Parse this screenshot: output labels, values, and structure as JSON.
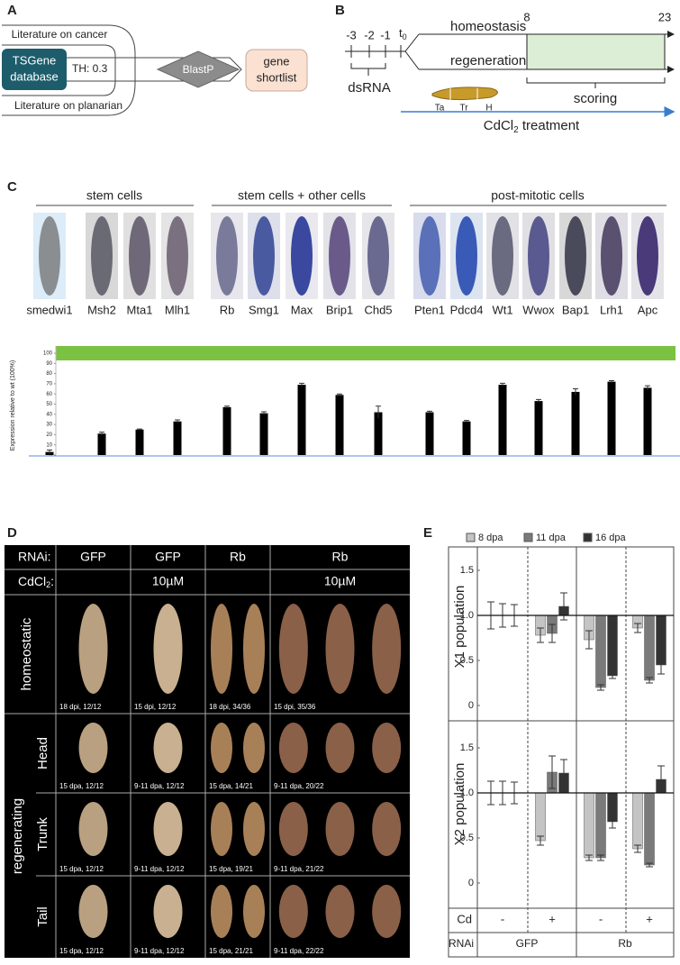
{
  "panel_a": {
    "label": "A",
    "lit_cancer": "Literature on cancer",
    "tsgene": [
      "TSGene",
      "database"
    ],
    "threshold": "TH: 0.3",
    "blastp": "BlastP",
    "shortlist": [
      "gene",
      "shortlist"
    ],
    "lit_planarian": "Literature on planarian"
  },
  "panel_b": {
    "label": "B",
    "days": [
      "-3",
      "-2",
      "-1"
    ],
    "t0": [
      "t",
      "0"
    ],
    "homeostasis": "homeostasis",
    "regeneration": "regeneration",
    "day_start": "8",
    "day_end": "23",
    "dsrna": "dsRNA",
    "fragments": [
      "Ta",
      "Tr",
      "H"
    ],
    "scoring": "scoring",
    "treatment": [
      "CdCl",
      "2",
      " treatment"
    ]
  },
  "panel_c": {
    "label": "C",
    "groups": [
      "stem cells",
      "stem cells + other cells",
      "post-mitotic cells"
    ]
  },
  "panel_d": {
    "label": "D",
    "rnai_label": "RNAi:",
    "rnai": [
      "GFP",
      "GFP",
      "Rb",
      "Rb"
    ],
    "cd_label": [
      "CdCl",
      "2",
      ":"
    ],
    "cd": [
      "10µM",
      "10µM"
    ],
    "homeostatic": "homeostatic",
    "regenerating": "regenerating",
    "fragments": [
      "Head",
      "Trunk",
      "Tail"
    ],
    "captions": [
      [
        "18 dpi, 12/12",
        "15 dpi, 12/12",
        "18 dpi, 34/36",
        "15 dpi, 35/36"
      ],
      [
        "15 dpa, 12/12",
        "9-11 dpa, 12/12",
        "15 dpa, 14/21",
        "9-11 dpa, 20/22"
      ],
      [
        "15 dpa, 12/12",
        "9-11 dpa, 12/12",
        "15 dpa, 19/21",
        "9-11 dpa, 21/22"
      ],
      [
        "15 dpa, 12/12",
        "9-11 dpa, 12/12",
        "15 dpa, 21/21",
        "9-11 dpa, 22/22"
      ]
    ]
  },
  "panel_e": {
    "label": "E",
    "cd_label": "Cd",
    "cd": [
      "-",
      "+",
      "-",
      "+"
    ],
    "rnai_label": "RNAi",
    "rnai": [
      "GFP",
      "Rb"
    ]
  },
  "chart_data": [
    {
      "type": "bar",
      "ylabel": "Expression relative to wt (100%)",
      "categories": [
        "smedwi1",
        "Msh2",
        "Mta1",
        "Mlh1",
        "Rb",
        "Smg1",
        "Max",
        "Brip1",
        "Chd5",
        "Pten1",
        "Pdcd4",
        "Wt1",
        "Wwox",
        "Bap1",
        "Lrh1",
        "Apc"
      ],
      "values": [
        3,
        21,
        25,
        33,
        47,
        41,
        69,
        59,
        42,
        42,
        33,
        69,
        53,
        62,
        72,
        66
      ],
      "errors": [
        2,
        1.5,
        0.5,
        1.5,
        1,
        1.5,
        1.5,
        1,
        6,
        1,
        1,
        1.5,
        1.5,
        3,
        1,
        2
      ],
      "color": "#000000",
      "reference": 100,
      "reference_color": "#7cc242",
      "ylim": [
        0,
        100
      ],
      "yticks": [
        0,
        10,
        20,
        30,
        40,
        50,
        60,
        70,
        80,
        90,
        100
      ]
    },
    {
      "type": "bar",
      "baseline": 1,
      "ylim": [
        0,
        1.75
      ],
      "yticks": [
        0,
        {
          "value": 0.5,
          "label": "0.5"
        },
        {
          "value": 1,
          "label": "1.0"
        },
        {
          "value": 1.5,
          "label": "1.5"
        }
      ],
      "series": [
        {
          "name": "8 dpa",
          "color": "#c4c4c4"
        },
        {
          "name": "11 dpa",
          "color": "#7a7a7a"
        },
        {
          "name": "16 dpa",
          "color": "#333333"
        }
      ],
      "panels": [
        {
          "ylabel": "X1 population",
          "series": [
            {
              "values": [
                1,
                0.78,
                0.73,
                0.86
              ],
              "errors": [
                0.15,
                0.08,
                0.1,
                0.05
              ]
            },
            {
              "values": [
                1,
                0.8,
                0.2,
                0.28
              ],
              "errors": [
                0.13,
                0.1,
                0.03,
                0.03
              ]
            },
            {
              "values": [
                1,
                1.1,
                0.33,
                0.45
              ],
              "errors": [
                0.12,
                0.15,
                0.03,
                0.1
              ]
            }
          ]
        },
        {
          "ylabel": "X2 population",
          "series": [
            {
              "values": [
                1,
                0.47,
                0.28,
                0.38
              ],
              "errors": [
                0.13,
                0.05,
                0.03,
                0.04
              ]
            },
            {
              "values": [
                1,
                1.23,
                0.28,
                0.2
              ],
              "errors": [
                0.13,
                0.18,
                0.03,
                0.02
              ]
            },
            {
              "values": [
                1,
                1.22,
                0.68,
                1.15
              ],
              "errors": [
                0.12,
                0.15,
                0.07,
                0.15
              ]
            }
          ]
        }
      ]
    }
  ]
}
